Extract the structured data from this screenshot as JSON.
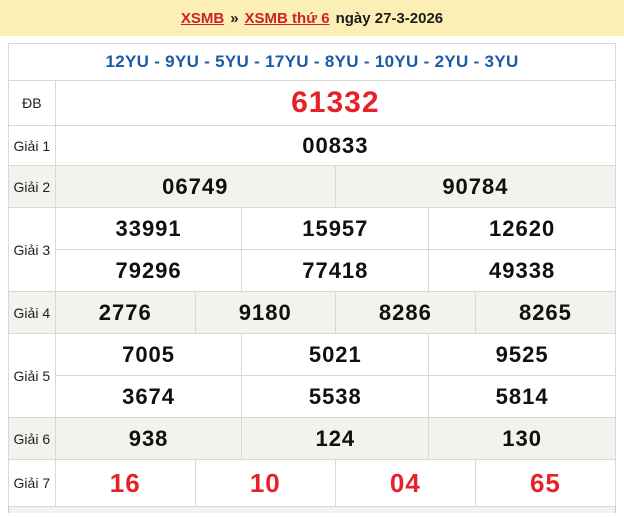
{
  "page": {
    "breadcrumb": {
      "link_xsmb": "XSMB",
      "separator": "»",
      "link_day": "XSMB thứ 6",
      "date_text": "ngày 27-3-2026"
    },
    "summary_line": "12YU - 9YU - 5YU - 17YU - 8YU - 10YU - 2YU - 3YU"
  },
  "results": {
    "special": {
      "label": "ĐB",
      "value": "61332"
    },
    "prize1": {
      "label": "Giải 1",
      "value": "00833"
    },
    "prize2": {
      "label": "Giải 2",
      "values": [
        "06749",
        "90784"
      ]
    },
    "prize3": {
      "label": "Giải 3",
      "row1": [
        "33991",
        "15957",
        "12620"
      ],
      "row2": [
        "79296",
        "77418",
        "49338"
      ]
    },
    "prize4": {
      "label": "Giải 4",
      "values": [
        "2776",
        "9180",
        "8286",
        "8265"
      ]
    },
    "prize5": {
      "label": "Giải 5",
      "row1": [
        "7005",
        "5021",
        "9525"
      ],
      "row2": [
        "3674",
        "5538",
        "5814"
      ]
    },
    "prize6": {
      "label": "Giải 6",
      "values": [
        "938",
        "124",
        "130"
      ]
    },
    "prize7": {
      "label": "Giải 7",
      "values": [
        "16",
        "10",
        "04",
        "65"
      ]
    }
  },
  "colors": {
    "accent_blue": "#1A5BA8",
    "result_red": "#E62129",
    "link_red": "#CC2229",
    "banner_bg": "#FCEFB6",
    "stripe_bg": "#F4F2EC"
  }
}
